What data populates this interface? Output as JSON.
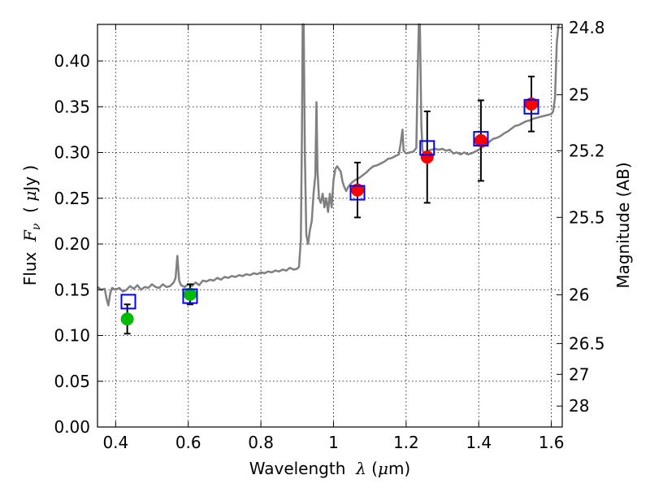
{
  "chart_data": {
    "type": "scatter",
    "title": "",
    "xlabel": {
      "prefix": "Wavelength  ",
      "symbol": "λ",
      "mid": " (",
      "mu": "μ",
      "suffix": "m)"
    },
    "ylabel": {
      "prefix": "Flux  ",
      "symbol": "F",
      "sub": "ν",
      "mid": "  ( ",
      "mu": "μ",
      "suffix": "Jy )"
    },
    "y2label": "Magnitude (AB)",
    "xlim": [
      0.35,
      1.63
    ],
    "ylim": [
      0.0,
      0.44
    ],
    "grid": true,
    "x_ticks": [
      {
        "value": 0.4,
        "label": "0.4"
      },
      {
        "value": 0.6,
        "label": "0.6"
      },
      {
        "value": 0.8,
        "label": "0.8"
      },
      {
        "value": 1.0,
        "label": "1"
      },
      {
        "value": 1.2,
        "label": "1.2"
      },
      {
        "value": 1.4,
        "label": "1.4"
      },
      {
        "value": 1.6,
        "label": "1.6"
      }
    ],
    "y_ticks": [
      {
        "value": 0.0,
        "label": "0.00"
      },
      {
        "value": 0.05,
        "label": "0.05"
      },
      {
        "value": 0.1,
        "label": "0.10"
      },
      {
        "value": 0.15,
        "label": "0.15"
      },
      {
        "value": 0.2,
        "label": "0.20"
      },
      {
        "value": 0.25,
        "label": "0.25"
      },
      {
        "value": 0.3,
        "label": "0.30"
      },
      {
        "value": 0.35,
        "label": "0.35"
      },
      {
        "value": 0.4,
        "label": "0.40"
      }
    ],
    "mag_ticks": [
      {
        "mag": 24.8,
        "label": "24.8"
      },
      {
        "mag": 25.0,
        "label": "25"
      },
      {
        "mag": 25.2,
        "label": "25.2"
      },
      {
        "mag": 25.5,
        "label": "25.5"
      },
      {
        "mag": 26.0,
        "label": "26"
      },
      {
        "mag": 26.5,
        "label": "26.5"
      },
      {
        "mag": 27.0,
        "label": "27"
      },
      {
        "mag": 28.0,
        "label": "28"
      }
    ],
    "colors": {
      "spectrum": "#808080",
      "red_points": "#ff0000",
      "green_points": "#00bb00",
      "model_squares": "#0000ff",
      "errorbars": "#000000"
    },
    "spectrum": [
      [
        0.35,
        0.153
      ],
      [
        0.36,
        0.15
      ],
      [
        0.37,
        0.151
      ],
      [
        0.375,
        0.14
      ],
      [
        0.38,
        0.133
      ],
      [
        0.385,
        0.146
      ],
      [
        0.39,
        0.152
      ],
      [
        0.4,
        0.15
      ],
      [
        0.41,
        0.152
      ],
      [
        0.42,
        0.148
      ],
      [
        0.43,
        0.15
      ],
      [
        0.44,
        0.154
      ],
      [
        0.45,
        0.151
      ],
      [
        0.46,
        0.155
      ],
      [
        0.47,
        0.15
      ],
      [
        0.48,
        0.153
      ],
      [
        0.49,
        0.152
      ],
      [
        0.5,
        0.156
      ],
      [
        0.51,
        0.153
      ],
      [
        0.52,
        0.152
      ],
      [
        0.53,
        0.156
      ],
      [
        0.54,
        0.153
      ],
      [
        0.55,
        0.154
      ],
      [
        0.56,
        0.158
      ],
      [
        0.565,
        0.163
      ],
      [
        0.57,
        0.187
      ],
      [
        0.575,
        0.16
      ],
      [
        0.58,
        0.155
      ],
      [
        0.59,
        0.153
      ],
      [
        0.6,
        0.156
      ],
      [
        0.61,
        0.154
      ],
      [
        0.62,
        0.158
      ],
      [
        0.63,
        0.155
      ],
      [
        0.64,
        0.16
      ],
      [
        0.65,
        0.159
      ],
      [
        0.66,
        0.161
      ],
      [
        0.67,
        0.16
      ],
      [
        0.68,
        0.163
      ],
      [
        0.69,
        0.161
      ],
      [
        0.7,
        0.164
      ],
      [
        0.71,
        0.163
      ],
      [
        0.72,
        0.165
      ],
      [
        0.73,
        0.164
      ],
      [
        0.74,
        0.166
      ],
      [
        0.75,
        0.165
      ],
      [
        0.76,
        0.167
      ],
      [
        0.77,
        0.166
      ],
      [
        0.78,
        0.168
      ],
      [
        0.79,
        0.167
      ],
      [
        0.8,
        0.169
      ],
      [
        0.81,
        0.168
      ],
      [
        0.82,
        0.17
      ],
      [
        0.83,
        0.169
      ],
      [
        0.84,
        0.171
      ],
      [
        0.85,
        0.17
      ],
      [
        0.86,
        0.172
      ],
      [
        0.87,
        0.171
      ],
      [
        0.88,
        0.174
      ],
      [
        0.89,
        0.172
      ],
      [
        0.9,
        0.173
      ],
      [
        0.905,
        0.175
      ],
      [
        0.91,
        0.205
      ],
      [
        0.913,
        0.32
      ],
      [
        0.915,
        0.44
      ],
      [
        0.918,
        0.44
      ],
      [
        0.921,
        0.3
      ],
      [
        0.925,
        0.21
      ],
      [
        0.93,
        0.2
      ],
      [
        0.935,
        0.215
      ],
      [
        0.94,
        0.225
      ],
      [
        0.945,
        0.255
      ],
      [
        0.95,
        0.275
      ],
      [
        0.953,
        0.355
      ],
      [
        0.956,
        0.28
      ],
      [
        0.96,
        0.25
      ],
      [
        0.965,
        0.245
      ],
      [
        0.97,
        0.255
      ],
      [
        0.975,
        0.24
      ],
      [
        0.98,
        0.25
      ],
      [
        0.985,
        0.235
      ],
      [
        0.99,
        0.255
      ],
      [
        0.995,
        0.24
      ],
      [
        1.0,
        0.27
      ],
      [
        1.005,
        0.282
      ],
      [
        1.01,
        0.285
      ],
      [
        1.015,
        0.282
      ],
      [
        1.02,
        0.279
      ],
      [
        1.025,
        0.268
      ],
      [
        1.03,
        0.262
      ],
      [
        1.035,
        0.258
      ],
      [
        1.04,
        0.262
      ],
      [
        1.05,
        0.267
      ],
      [
        1.06,
        0.27
      ],
      [
        1.07,
        0.272
      ],
      [
        1.08,
        0.275
      ],
      [
        1.09,
        0.278
      ],
      [
        1.1,
        0.282
      ],
      [
        1.11,
        0.285
      ],
      [
        1.12,
        0.286
      ],
      [
        1.13,
        0.288
      ],
      [
        1.14,
        0.29
      ],
      [
        1.15,
        0.293
      ],
      [
        1.16,
        0.294
      ],
      [
        1.17,
        0.296
      ],
      [
        1.18,
        0.298
      ],
      [
        1.185,
        0.31
      ],
      [
        1.19,
        0.325
      ],
      [
        1.193,
        0.302
      ],
      [
        1.2,
        0.299
      ],
      [
        1.21,
        0.3
      ],
      [
        1.22,
        0.301
      ],
      [
        1.228,
        0.305
      ],
      [
        1.232,
        0.39
      ],
      [
        1.235,
        0.44
      ],
      [
        1.238,
        0.44
      ],
      [
        1.242,
        0.33
      ],
      [
        1.245,
        0.302
      ],
      [
        1.25,
        0.3
      ],
      [
        1.26,
        0.302
      ],
      [
        1.27,
        0.303
      ],
      [
        1.28,
        0.304
      ],
      [
        1.29,
        0.303
      ],
      [
        1.3,
        0.304
      ],
      [
        1.31,
        0.302
      ],
      [
        1.32,
        0.303
      ],
      [
        1.33,
        0.299
      ],
      [
        1.34,
        0.3
      ],
      [
        1.35,
        0.298
      ],
      [
        1.36,
        0.3
      ],
      [
        1.37,
        0.298
      ],
      [
        1.38,
        0.299
      ],
      [
        1.39,
        0.301
      ],
      [
        1.4,
        0.303
      ],
      [
        1.41,
        0.306
      ],
      [
        1.42,
        0.308
      ],
      [
        1.43,
        0.312
      ],
      [
        1.44,
        0.315
      ],
      [
        1.45,
        0.316
      ],
      [
        1.46,
        0.318
      ],
      [
        1.47,
        0.321
      ],
      [
        1.48,
        0.323
      ],
      [
        1.49,
        0.326
      ],
      [
        1.5,
        0.329
      ],
      [
        1.51,
        0.33
      ],
      [
        1.52,
        0.332
      ],
      [
        1.53,
        0.334
      ],
      [
        1.54,
        0.335
      ],
      [
        1.55,
        0.337
      ],
      [
        1.56,
        0.338
      ],
      [
        1.57,
        0.339
      ],
      [
        1.58,
        0.34
      ],
      [
        1.59,
        0.341
      ],
      [
        1.6,
        0.342
      ],
      [
        1.605,
        0.345
      ],
      [
        1.61,
        0.36
      ],
      [
        1.615,
        0.42
      ],
      [
        1.62,
        0.44
      ]
    ],
    "observed_red": [
      {
        "x": 1.066,
        "y": 0.259,
        "yerr": 0.03
      },
      {
        "x": 1.258,
        "y": 0.295,
        "yerr": 0.05
      },
      {
        "x": 1.406,
        "y": 0.313,
        "yerr": 0.044
      },
      {
        "x": 1.545,
        "y": 0.353,
        "yerr": 0.03
      }
    ],
    "observed_green": [
      {
        "x": 0.432,
        "y": 0.118,
        "yerr": 0.016
      },
      {
        "x": 0.605,
        "y": 0.145,
        "yerr": 0.011
      }
    ],
    "model_squares": [
      {
        "x": 0.435,
        "y": 0.137
      },
      {
        "x": 0.605,
        "y": 0.143
      },
      {
        "x": 1.066,
        "y": 0.256
      },
      {
        "x": 1.258,
        "y": 0.305
      },
      {
        "x": 1.406,
        "y": 0.315
      },
      {
        "x": 1.545,
        "y": 0.35
      }
    ]
  }
}
